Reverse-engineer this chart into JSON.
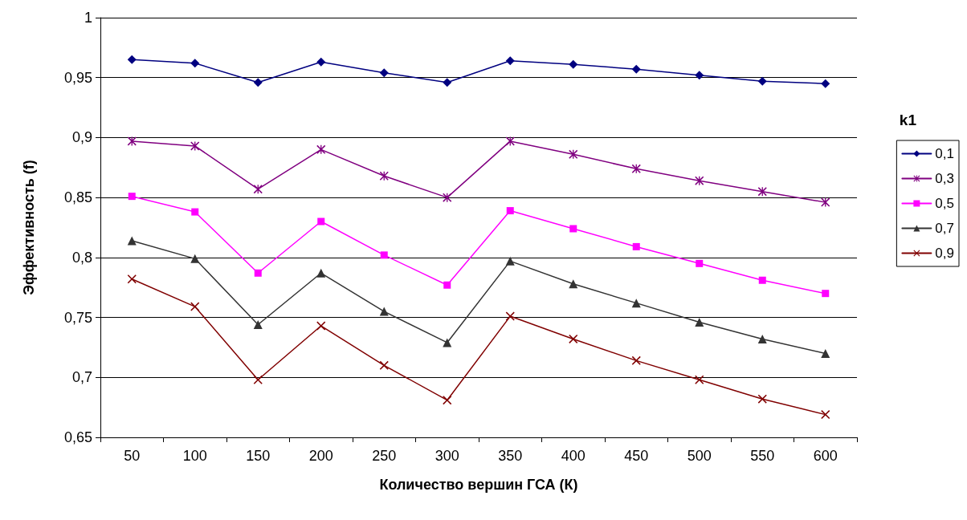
{
  "chart_data": {
    "type": "line",
    "xlabel": "Количество вершин ГСА (К)",
    "ylabel": "Эффективность (f)",
    "legend_title": "k1",
    "categories": [
      "50",
      "100",
      "150",
      "200",
      "250",
      "300",
      "350",
      "400",
      "450",
      "500",
      "550",
      "600"
    ],
    "ylim": [
      0.65,
      1
    ],
    "yticks": [
      {
        "value": 0.65,
        "label": "0,65"
      },
      {
        "value": 0.7,
        "label": "0,7"
      },
      {
        "value": 0.75,
        "label": "0,75"
      },
      {
        "value": 0.8,
        "label": "0,8"
      },
      {
        "value": 0.85,
        "label": "0,85"
      },
      {
        "value": 0.9,
        "label": "0,9"
      },
      {
        "value": 0.95,
        "label": "0,95"
      },
      {
        "value": 1,
        "label": "1"
      }
    ],
    "grid": "y",
    "legend": "right",
    "line_style": "solid",
    "series": [
      {
        "name": "0,1",
        "color": "#000080",
        "marker": "diamond",
        "values": [
          0.965,
          0.962,
          0.946,
          0.963,
          0.954,
          0.946,
          0.964,
          0.961,
          0.957,
          0.952,
          0.947,
          0.945
        ]
      },
      {
        "name": "0,3",
        "color": "#800080",
        "marker": "star",
        "values": [
          0.897,
          0.893,
          0.857,
          0.89,
          0.868,
          0.85,
          0.897,
          0.886,
          0.874,
          0.864,
          0.855,
          0.846
        ]
      },
      {
        "name": "0,5",
        "color": "#ff00ff",
        "marker": "square",
        "values": [
          0.851,
          0.838,
          0.787,
          0.83,
          0.802,
          0.777,
          0.839,
          0.824,
          0.809,
          0.795,
          0.781,
          0.77
        ]
      },
      {
        "name": "0,7",
        "color": "#333333",
        "marker": "triangle",
        "values": [
          0.814,
          0.799,
          0.744,
          0.787,
          0.755,
          0.729,
          0.797,
          0.778,
          0.762,
          0.746,
          0.732,
          0.72
        ]
      },
      {
        "name": "0,9",
        "color": "#800000",
        "marker": "cross",
        "values": [
          0.782,
          0.759,
          0.698,
          0.743,
          0.71,
          0.681,
          0.751,
          0.732,
          0.714,
          0.698,
          0.682,
          0.669
        ]
      }
    ]
  }
}
